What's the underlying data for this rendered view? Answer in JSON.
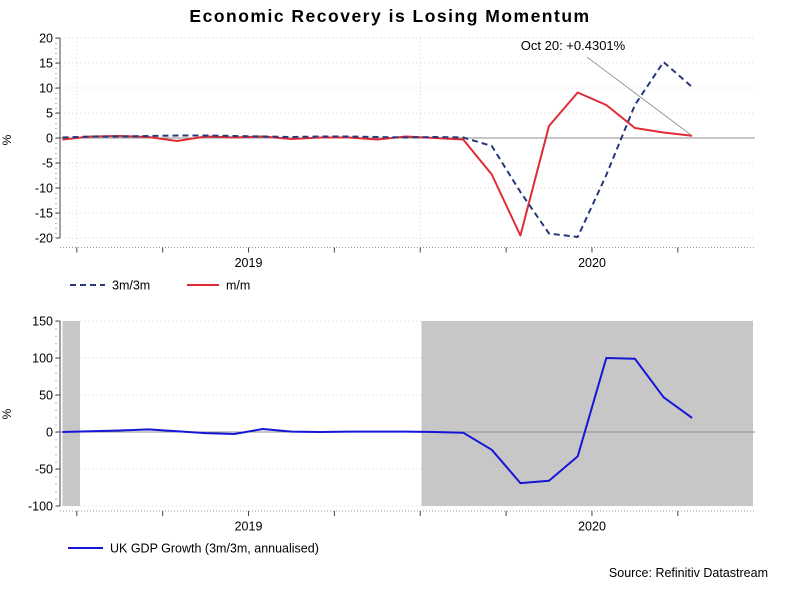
{
  "title": "Economic Recovery is Losing Momentum",
  "annotation": {
    "label": "Oct 20: +0.4301%",
    "points_to": {
      "series": "m/m",
      "x": "Oct 2020",
      "value": 0.4301
    }
  },
  "source": "Source: Refinitiv Datastream",
  "top_chart": {
    "ylabel": "%",
    "yticks": [
      "20",
      "15",
      "10",
      "5",
      "0",
      "-5",
      "-10",
      "-15",
      "-20"
    ],
    "xticks": [
      "2019",
      "2020"
    ],
    "legend": [
      {
        "label": "3m/3m",
        "color": "#27397b",
        "style": "dashed"
      },
      {
        "label": "m/m",
        "color": "#e02b35",
        "style": "solid"
      }
    ]
  },
  "bottom_chart": {
    "ylabel": "%",
    "yticks": [
      "150",
      "100",
      "50",
      "0",
      "-50",
      "-100"
    ],
    "xticks": [
      "2019",
      "2020"
    ],
    "legend": [
      {
        "label": "UK GDP Growth (3m/3m, annualised)",
        "color": "#1616d8",
        "style": "solid"
      }
    ]
  },
  "chart_data": [
    {
      "type": "line",
      "title": "Economic Recovery is Losing Momentum",
      "ylabel": "%",
      "ylim": [
        -20,
        20
      ],
      "ytick_step": 5,
      "grid": "dotted",
      "legend_position": "bottom-left",
      "xticklabels": [
        "2019",
        "2020"
      ],
      "x": [
        "Dec 2018",
        "Jan 2019",
        "Feb 2019",
        "Mar 2019",
        "Apr 2019",
        "May 2019",
        "Jun 2019",
        "Jul 2019",
        "Aug 2019",
        "Sep 2019",
        "Oct 2019",
        "Nov 2019",
        "Dec 2019",
        "Jan 2020",
        "Feb 2020",
        "Mar 2020",
        "Apr 2020",
        "May 2020",
        "Jun 2020",
        "Jul 2020",
        "Aug 2020",
        "Sep 2020",
        "Oct 2020"
      ],
      "series": [
        {
          "name": "3m/3m",
          "color": "#27397b",
          "line_style": "dashed",
          "values": [
            0.1,
            0.3,
            0.3,
            0.4,
            0.5,
            0.5,
            0.4,
            0.3,
            0.2,
            0.3,
            0.3,
            0.2,
            0.1,
            0.2,
            0.1,
            -1.6,
            -10.8,
            -19.1,
            -19.8,
            -7.4,
            6.6,
            15.2,
            10.2
          ]
        },
        {
          "name": "m/m",
          "color": "#e02b35",
          "line_style": "solid",
          "values": [
            -0.3,
            0.3,
            0.4,
            0.2,
            -0.6,
            0.3,
            0.1,
            0.3,
            -0.2,
            0.1,
            0.1,
            -0.3,
            0.3,
            0.0,
            -0.3,
            -7.3,
            -19.5,
            2.4,
            9.1,
            6.6,
            2.0,
            1.1,
            0.43
          ]
        }
      ],
      "annotation": {
        "text": "Oct 20: +0.4301%",
        "series": "m/m",
        "x": "Oct 2020",
        "value": 0.4301
      }
    },
    {
      "type": "line",
      "ylabel": "%",
      "ylim": [
        -100,
        150
      ],
      "ytick_step": 50,
      "grid": "dotted",
      "legend_position": "bottom-left",
      "xticklabels": [
        "2019",
        "2020"
      ],
      "shaded_x_ranges": [
        [
          "Dec 2018",
          "Jan 2019"
        ],
        [
          "Jan 2020",
          "end of axis"
        ]
      ],
      "x": [
        "Dec 2018",
        "Jan 2019",
        "Feb 2019",
        "Mar 2019",
        "Apr 2019",
        "May 2019",
        "Jun 2019",
        "Jul 2019",
        "Aug 2019",
        "Sep 2019",
        "Oct 2019",
        "Nov 2019",
        "Dec 2019",
        "Jan 2020",
        "Feb 2020",
        "Mar 2020",
        "Apr 2020",
        "May 2020",
        "Jun 2020",
        "Jul 2020",
        "Aug 2020",
        "Sep 2020",
        "Oct 2020"
      ],
      "series": [
        {
          "name": "UK GDP Growth (3m/3m, annualised)",
          "color": "#1616d8",
          "line_style": "solid",
          "values": [
            0,
            1,
            2,
            3.5,
            1,
            -1.5,
            -2.7,
            4,
            0.5,
            0,
            0.5,
            0.5,
            0.5,
            0,
            -1,
            -24,
            -69,
            -66,
            -33,
            100,
            99,
            47,
            19
          ]
        }
      ]
    }
  ]
}
